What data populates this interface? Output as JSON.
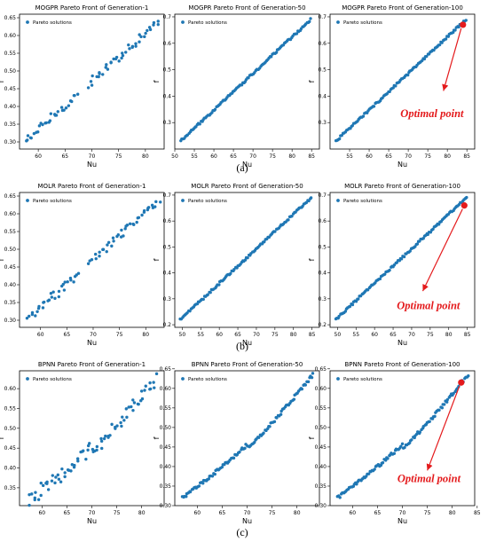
{
  "figure": {
    "row_captions": [
      "(a)",
      "(b)",
      "(c)"
    ],
    "annotation_text": "Optimal point",
    "colors": {
      "points": "#1f77b4",
      "optimal": "#e41a1c",
      "arrow": "#e41a1c"
    }
  },
  "chart_data": [
    {
      "type": "scatter",
      "title": "MOGPR Pareto Front of Generation-1",
      "xlabel": "Nu",
      "ylabel": "f",
      "xlim": [
        56.5,
        83.5
      ],
      "ylim": [
        0.28,
        0.66
      ],
      "xticks": [
        60,
        65,
        70,
        75,
        80
      ],
      "yticks": [
        0.3,
        0.35,
        0.4,
        0.45,
        0.5,
        0.55,
        0.6,
        0.65
      ],
      "legend": {
        "label": "Pareto solutions",
        "loc": "upper-left"
      },
      "generator": {
        "x_start": 57.5,
        "x_end": 82.5,
        "count": 75,
        "y_start": 0.3,
        "y_end": 0.64,
        "noise": 0.012,
        "gap_start": 67.5,
        "gap_end": 69.0,
        "mid_bend": 0.0
      }
    },
    {
      "type": "scatter",
      "title": "MOGPR Pareto Front of Generation-50",
      "xlabel": "Nu",
      "ylabel": "f",
      "xlim": [
        50,
        87
      ],
      "ylim": [
        0.2,
        0.71
      ],
      "xticks": [
        50,
        55,
        60,
        65,
        70,
        75,
        80,
        85
      ],
      "yticks": [
        0.3,
        0.4,
        0.5,
        0.6,
        0.7
      ],
      "legend": {
        "label": "Pareto solutions",
        "loc": "upper-left"
      },
      "generator": {
        "x_start": 51.5,
        "x_end": 84.8,
        "count": 110,
        "y_start": 0.23,
        "y_end": 0.69,
        "noise": 0.004,
        "gap_start": 0,
        "gap_end": 0,
        "mid_bend": 0.0
      }
    },
    {
      "type": "scatter",
      "title": "MOGPR Pareto Front of Generation-100",
      "xlabel": "Nu",
      "ylabel": "f",
      "xlim": [
        50,
        87
      ],
      "ylim": [
        0.2,
        0.71
      ],
      "xticks": [
        55,
        60,
        65,
        70,
        75,
        80,
        85
      ],
      "yticks": [
        0.3,
        0.4,
        0.5,
        0.6,
        0.7
      ],
      "legend": {
        "label": "Pareto solutions",
        "loc": "upper-left"
      },
      "generator": {
        "x_start": 51.5,
        "x_end": 84.8,
        "count": 110,
        "y_start": 0.23,
        "y_end": 0.69,
        "noise": 0.004,
        "gap_start": 0,
        "gap_end": 0,
        "mid_bend": 0.0
      },
      "optimal_point": {
        "x": 84.0,
        "y": 0.67
      },
      "annotation": {
        "text_x": 68.0,
        "text_y": 0.32,
        "arrow_x": 79.0,
        "arrow_y": 0.42
      }
    },
    {
      "type": "scatter",
      "title": "MOLR Pareto Front of Generation-1",
      "xlabel": "Nu",
      "ylabel": "f",
      "xlim": [
        56.0,
        83.5
      ],
      "ylim": [
        0.28,
        0.66
      ],
      "xticks": [
        60,
        65,
        70,
        75,
        80
      ],
      "yticks": [
        0.3,
        0.35,
        0.4,
        0.45,
        0.5,
        0.55,
        0.6,
        0.65
      ],
      "legend": {
        "label": "Pareto solutions",
        "loc": "upper-left"
      },
      "generator": {
        "x_start": 57.5,
        "x_end": 82.5,
        "count": 75,
        "y_start": 0.3,
        "y_end": 0.64,
        "noise": 0.012,
        "gap_start": 67.5,
        "gap_end": 69.0,
        "mid_bend": 0.0
      }
    },
    {
      "type": "scatter",
      "title": "MOLR Pareto Front of Generation-50",
      "xlabel": "Nu",
      "ylabel": "f",
      "xlim": [
        48,
        87
      ],
      "ylim": [
        0.19,
        0.71
      ],
      "xticks": [
        50,
        55,
        60,
        65,
        70,
        75,
        80,
        85
      ],
      "yticks": [
        0.2,
        0.3,
        0.4,
        0.5,
        0.6,
        0.7
      ],
      "legend": {
        "label": "Pareto solutions",
        "loc": "upper-left"
      },
      "generator": {
        "x_start": 49.5,
        "x_end": 84.8,
        "count": 110,
        "y_start": 0.22,
        "y_end": 0.69,
        "noise": 0.004,
        "gap_start": 0,
        "gap_end": 0,
        "mid_bend": 0.0
      }
    },
    {
      "type": "scatter",
      "title": "MOLR Pareto Front of Generation-100",
      "xlabel": "Nu",
      "ylabel": "f",
      "xlim": [
        48,
        87
      ],
      "ylim": [
        0.19,
        0.71
      ],
      "xticks": [
        50,
        55,
        60,
        65,
        70,
        75,
        80,
        85
      ],
      "yticks": [
        0.2,
        0.3,
        0.4,
        0.5,
        0.6,
        0.7
      ],
      "legend": {
        "label": "Pareto solutions",
        "loc": "upper-left"
      },
      "generator": {
        "x_start": 49.5,
        "x_end": 84.8,
        "count": 110,
        "y_start": 0.22,
        "y_end": 0.69,
        "noise": 0.004,
        "gap_start": 0,
        "gap_end": 0,
        "mid_bend": 0.0
      },
      "optimal_point": {
        "x": 84.2,
        "y": 0.66
      },
      "annotation": {
        "text_x": 66.0,
        "text_y": 0.26,
        "arrow_x": 73.0,
        "arrow_y": 0.33
      }
    },
    {
      "type": "scatter",
      "title": "BPNN Pareto Front of Generation-1",
      "xlabel": "Nu",
      "ylabel": "f",
      "xlim": [
        55.5,
        84.5
      ],
      "ylim": [
        0.305,
        0.645
      ],
      "xticks": [
        60,
        65,
        70,
        75,
        80
      ],
      "yticks": [
        0.35,
        0.4,
        0.45,
        0.5,
        0.55,
        0.6
      ],
      "legend": {
        "label": "Pareto solutions",
        "loc": "upper-left"
      },
      "generator": {
        "x_start": 57.3,
        "x_end": 83.0,
        "count": 80,
        "y_start": 0.32,
        "y_end": 0.63,
        "noise": 0.018,
        "gap_start": 0,
        "gap_end": 0,
        "mid_bend": 0.06
      }
    },
    {
      "type": "scatter",
      "title": "BPNN Pareto Front of Generation-50",
      "xlabel": "Nu",
      "ylabel": "f",
      "xlim": [
        55.5,
        84.5
      ],
      "ylim": [
        0.3,
        0.645
      ],
      "xticks": [
        60,
        65,
        70,
        75,
        80
      ],
      "yticks": [
        0.3,
        0.35,
        0.4,
        0.45,
        0.5,
        0.55,
        0.6,
        0.65
      ],
      "legend": {
        "label": "Pareto solutions",
        "loc": "upper-left"
      },
      "generator": {
        "x_start": 57.0,
        "x_end": 83.2,
        "count": 110,
        "y_start": 0.32,
        "y_end": 0.635,
        "noise": 0.004,
        "gap_start": 0,
        "gap_end": 0,
        "mid_bend": 0.05
      }
    },
    {
      "type": "scatter",
      "title": "BPNN Pareto Front of Generation-100",
      "xlabel": "Nu",
      "ylabel": "f",
      "xlim": [
        55.5,
        84.5
      ],
      "ylim": [
        0.3,
        0.645
      ],
      "xticks": [
        60,
        65,
        70,
        75,
        80,
        85
      ],
      "yticks": [
        0.3,
        0.35,
        0.4,
        0.45,
        0.5,
        0.55,
        0.6,
        0.65
      ],
      "legend": {
        "label": "Pareto solutions",
        "loc": "upper-left"
      },
      "generator": {
        "x_start": 57.0,
        "x_end": 83.2,
        "count": 110,
        "y_start": 0.32,
        "y_end": 0.635,
        "noise": 0.004,
        "gap_start": 0,
        "gap_end": 0,
        "mid_bend": 0.05
      },
      "optimal_point": {
        "x": 81.8,
        "y": 0.615
      },
      "annotation": {
        "text_x": 69.0,
        "text_y": 0.36,
        "arrow_x": 75.0,
        "arrow_y": 0.39
      }
    }
  ]
}
